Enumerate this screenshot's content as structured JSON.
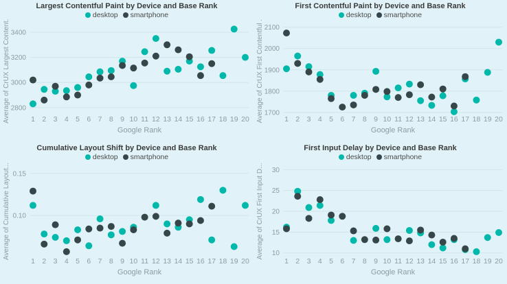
{
  "page": {
    "background": "#E1F3F8"
  },
  "colors": {
    "desktop": "#01B8AA",
    "smartphone": "#374649",
    "grid": "#CFE5EB",
    "axis_text": "#8C9CA3",
    "title_text": "#3B3B3B",
    "legend_text": "#4A4A4A"
  },
  "chart_data": [
    {
      "type": "scatter",
      "title": "Largest Contentful Paint by Device and Base Rank",
      "xlabel": "Google Rank",
      "ylabel": "Average of CrUX Largest Content...",
      "legend_position": "top",
      "grid": "horizontal",
      "x": [
        1,
        2,
        3,
        4,
        5,
        6,
        7,
        8,
        9,
        10,
        11,
        12,
        13,
        14,
        15,
        16,
        17,
        18,
        19,
        20
      ],
      "ylim": [
        2750,
        3460
      ],
      "ytick_values": [
        2800,
        3000,
        3200,
        3400
      ],
      "ytick_labels": [
        "2800",
        "3000",
        "3200",
        "3400"
      ],
      "series": [
        {
          "name": "desktop",
          "color_key": "desktop",
          "values": [
            2830,
            2945,
            2930,
            2935,
            2960,
            3045,
            3085,
            3095,
            3170,
            2975,
            3245,
            3350,
            3090,
            3105,
            3170,
            3125,
            3255,
            3055,
            3425,
            3200
          ]
        },
        {
          "name": "smartphone",
          "color_key": "smartphone",
          "values": [
            3020,
            2860,
            2970,
            2885,
            2900,
            2980,
            3035,
            3045,
            3135,
            3115,
            3155,
            3210,
            3300,
            3260,
            3205,
            3055,
            3150,
            null,
            null,
            null
          ]
        }
      ]
    },
    {
      "type": "scatter",
      "title": "First Contentful Paint by Device and Base Rank",
      "xlabel": "Google Rank",
      "ylabel": "Average of CrUX First Contentful ...",
      "legend_position": "top",
      "grid": "horizontal",
      "x": [
        1,
        2,
        3,
        4,
        5,
        6,
        7,
        8,
        9,
        10,
        11,
        12,
        13,
        14,
        15,
        16,
        17,
        18,
        19,
        20
      ],
      "ylim": [
        1693,
        2112
      ],
      "ytick_values": [
        1700,
        1800,
        1900,
        2000,
        2100
      ],
      "ytick_labels": [
        "1700",
        "1800",
        "1900",
        "2000",
        "2100"
      ],
      "series": [
        {
          "name": "desktop",
          "color_key": "desktop",
          "values": [
            1905,
            1965,
            1915,
            1878,
            1780,
            null,
            1780,
            1790,
            1893,
            1773,
            1815,
            1833,
            1755,
            1733,
            1778,
            1703,
            1857,
            1758,
            1888,
            2030
          ]
        },
        {
          "name": "smartphone",
          "color_key": "smartphone",
          "values": [
            2073,
            1930,
            1890,
            1855,
            1765,
            1725,
            1735,
            1780,
            1808,
            1798,
            1770,
            1783,
            1830,
            1772,
            1810,
            1730,
            1868,
            null,
            null,
            null
          ]
        }
      ]
    },
    {
      "type": "scatter",
      "title": "Cumulative Layout Shift by Device and Base Rank",
      "xlabel": "Google Rank",
      "ylabel": "Average of Cumulative Layout...",
      "legend_position": "top",
      "grid": "horizontal",
      "x": [
        1,
        2,
        3,
        4,
        5,
        6,
        7,
        8,
        9,
        10,
        11,
        12,
        13,
        14,
        15,
        16,
        17,
        18,
        19,
        20
      ],
      "ylim": [
        0.052,
        0.158
      ],
      "ytick_values": [
        0.1,
        0.15
      ],
      "ytick_labels": [
        "0.10",
        "0.15"
      ],
      "series": [
        {
          "name": "desktop",
          "color_key": "desktop",
          "values": [
            0.112,
            0.078,
            0.074,
            0.07,
            0.083,
            0.064,
            0.096,
            0.077,
            0.081,
            0.086,
            null,
            0.112,
            0.09,
            0.086,
            0.095,
            0.119,
            0.071,
            0.13,
            0.063,
            0.112
          ]
        },
        {
          "name": "smartphone",
          "color_key": "smartphone",
          "values": [
            0.129,
            0.066,
            0.089,
            0.057,
            0.071,
            0.084,
            0.085,
            0.087,
            0.067,
            0.083,
            0.098,
            0.099,
            0.079,
            0.091,
            0.09,
            0.094,
            0.111,
            null,
            null,
            null
          ]
        }
      ]
    },
    {
      "type": "scatter",
      "title": "First Input Delay by Device and Base Rank",
      "xlabel": "Google Rank",
      "ylabel": "Average of CrUX First Input D...",
      "legend_position": "top",
      "grid": "horizontal",
      "x": [
        1,
        2,
        3,
        4,
        5,
        6,
        7,
        8,
        9,
        10,
        11,
        12,
        13,
        14,
        15,
        16,
        17,
        18,
        19,
        20
      ],
      "ylim": [
        9.3,
        30.7
      ],
      "ytick_values": [
        10,
        15,
        20,
        25,
        30
      ],
      "ytick_labels": [
        "10",
        "15",
        "20",
        "25",
        "30"
      ],
      "series": [
        {
          "name": "desktop",
          "color_key": "desktop",
          "values": [
            16.2,
            24.8,
            20.9,
            21.4,
            17.8,
            null,
            13.0,
            null,
            15.9,
            13.2,
            null,
            15.4,
            14.8,
            12.0,
            11.2,
            13.2,
            10.8,
            10.3,
            13.7,
            14.9
          ]
        },
        {
          "name": "smartphone",
          "color_key": "smartphone",
          "values": [
            15.8,
            23.6,
            18.3,
            22.8,
            19.1,
            18.8,
            15.3,
            13.2,
            13.1,
            15.8,
            13.4,
            12.9,
            15.5,
            14.3,
            12.6,
            13.5,
            11.0,
            null,
            null,
            null
          ]
        }
      ]
    }
  ]
}
